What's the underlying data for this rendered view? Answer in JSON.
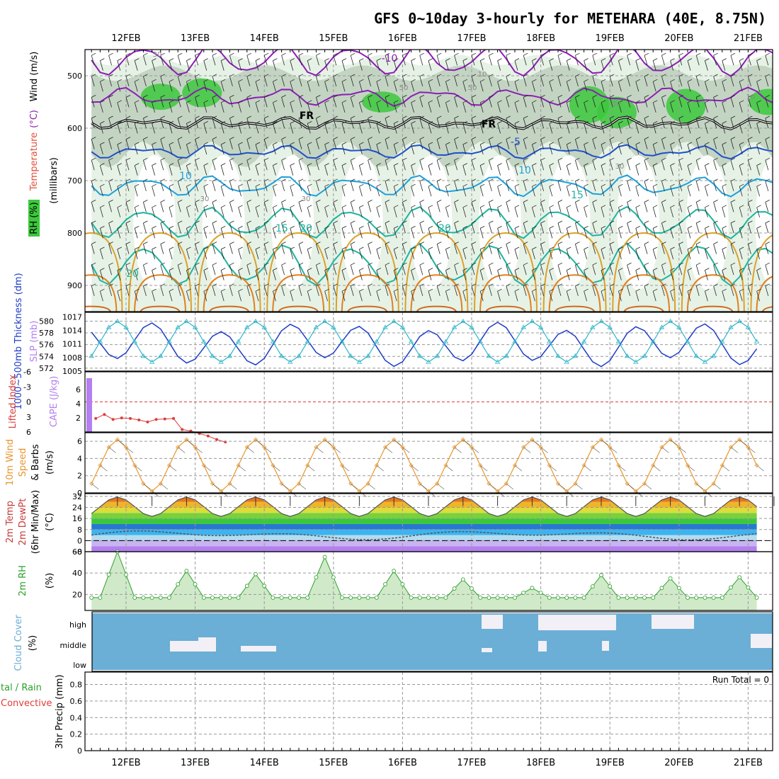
{
  "title": "GFS 0~10day 3-hourly for METEHARA (40E, 8.75N)",
  "dates": [
    "12FEB",
    "13FEB",
    "14FEB",
    "15FEB",
    "16FEB",
    "17FEB",
    "18FEB",
    "19FEB",
    "20FEB",
    "21FEB"
  ],
  "colors": {
    "rh_green": "#3cc83c",
    "rh_light": "#e6f2e6",
    "rh_gray": "#b4c8b4",
    "temp_purple": "#8c1eb4",
    "temp_blue": "#1e50c8",
    "temp_cyan": "#1ea0dc",
    "temp_teal": "#1eb4a0",
    "temp_orange": "#dca028",
    "freezing": "#000000",
    "slp": "#28b4c8",
    "thickness": "#1e3cc8",
    "cape": "#b47ff0",
    "li": "#dc3c3c",
    "wind10m": "#e6962d",
    "cloud": "#6baed6",
    "rh2m": "#2ca02c"
  },
  "chart_data": [
    {
      "type": "heatmap",
      "name": "upper_air",
      "ylabel": "(millibars)",
      "side_labels": {
        "rh": "RH (%)",
        "temperature": "Temperature",
        "temp_unit": "(°C)",
        "wind": "Wind (m/s)"
      },
      "y_ticks": [
        500,
        600,
        700,
        800,
        900
      ],
      "ylim": [
        450,
        950
      ],
      "contour_labels": [
        {
          "text": "-10",
          "color": "purple"
        },
        {
          "text": "FR",
          "color": "black"
        },
        {
          "text": "FR",
          "color": "black"
        },
        {
          "text": "-5",
          "color": "blue"
        },
        {
          "text": "10",
          "color": "cyan"
        },
        {
          "text": "10",
          "color": "cyan"
        },
        {
          "text": "15",
          "color": "teal"
        },
        {
          "text": "15",
          "color": "teal"
        },
        {
          "text": "20",
          "color": "teal"
        },
        {
          "text": "20",
          "color": "teal"
        },
        {
          "text": "20",
          "color": "teal"
        }
      ],
      "rh_labels": [
        "30",
        "10",
        "50",
        "30",
        "30",
        "30",
        "50",
        "10",
        "30"
      ]
    },
    {
      "type": "line",
      "name": "slp_thickness",
      "ylabel_left": "1000~500mb Thickness (dm)",
      "ylabel_right": "SLP (mb)",
      "y_ticks_left": [
        572,
        574,
        576,
        578,
        580
      ],
      "y_ticks_right": [
        1005,
        1008,
        1011,
        1014,
        1017
      ],
      "ylim_left": [
        571.5,
        581.5
      ],
      "ylim_right": [
        1005,
        1018
      ]
    },
    {
      "type": "bar",
      "name": "cape_li",
      "ylabel_left": "Lifted Index",
      "ylabel_right": "CAPE (J/kg)",
      "y_ticks_li": [
        -6,
        -3,
        0,
        3,
        6
      ],
      "y_ticks_cape": [
        2,
        4,
        6
      ],
      "cape_values": [
        7.6
      ],
      "li_values": [
        3.3,
        2.5,
        3.5,
        3.2,
        3.3,
        3.6,
        4.0,
        3.5,
        3.4,
        3.3,
        5.5,
        5.8,
        6.3,
        6.8,
        7.5,
        8.0
      ]
    },
    {
      "type": "line",
      "name": "wind10m",
      "ylabel": "10m Wind Speed & Barbs (m/s)",
      "label_parts": [
        "10m Wind",
        "Speed",
        "& Barbs",
        "(m/s)"
      ],
      "y_ticks": [
        0,
        2,
        4,
        6
      ],
      "ylim": [
        0,
        7
      ]
    },
    {
      "type": "area",
      "name": "temp2m",
      "ylabel": "2m Temp 2m DewPt (6hr Min/Max) (°C)",
      "label_parts": [
        "2m Temp",
        "2m DewPt",
        "(6hr Min/Max)",
        "(°C)"
      ],
      "y_ticks": [
        -8,
        0,
        8,
        16,
        24,
        32
      ],
      "ylim": [
        -8,
        34
      ]
    },
    {
      "type": "area",
      "name": "rh2m",
      "ylabel": "2m RH (%)",
      "label_parts": [
        "2m RH",
        "(%)"
      ],
      "y_ticks": [
        20,
        40,
        60
      ],
      "ylim": [
        5,
        60
      ]
    },
    {
      "type": "heatmap",
      "name": "cloud_cover",
      "ylabel": "Cloud Cover (%)",
      "label_parts": [
        "Cloud Cover",
        "(%)"
      ],
      "y_ticks": [
        "high",
        "middle",
        "low"
      ]
    },
    {
      "type": "bar",
      "name": "precip",
      "ylabel": "3hr Precip (mm)",
      "side_labels": [
        "tal / Rain",
        "Convective"
      ],
      "y_ticks": [
        0,
        0.2,
        0.4,
        0.6,
        0.8
      ],
      "ylim": [
        0,
        0.95
      ],
      "run_total": "Run Total = 0",
      "values": []
    }
  ]
}
